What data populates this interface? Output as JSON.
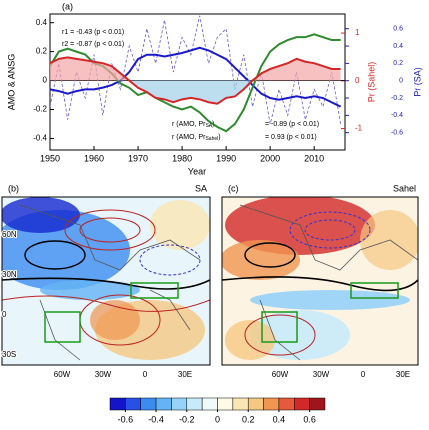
{
  "chart_data": [
    {
      "type": "line",
      "panel": "(a)",
      "xlabel": "Year",
      "ylabel": "AMO & ANSG",
      "y2label": "Pr (Sahel)",
      "y3label": "Pr (SA)",
      "annotations": [
        "r1 = -0.43 (p < 0.01)",
        "r2 = -0.87 (p < 0.01)"
      ],
      "corr_labels": [
        {
          "text": "r (AMO, Pr",
          "sub": "SA",
          "tail": ")",
          "stat": "= -0.89 (p < 0.01)"
        },
        {
          "text": "r (AMO, Pr",
          "sub": "Sahel",
          "tail": ")",
          "stat": "= 0.93 (p < 0.01)"
        }
      ],
      "x": [
        1950,
        1952,
        1954,
        1956,
        1958,
        1960,
        1962,
        1964,
        1966,
        1968,
        1970,
        1972,
        1974,
        1976,
        1978,
        1980,
        1982,
        1984,
        1986,
        1988,
        1990,
        1992,
        1994,
        1996,
        1998,
        2000,
        2002,
        2004,
        2006,
        2008,
        2010,
        2012,
        2014,
        2016
      ],
      "xlim": [
        1950,
        2017
      ],
      "xticks": [
        1950,
        1960,
        1970,
        1980,
        1990,
        2000,
        2010
      ],
      "ylim": [
        -0.48,
        0.46
      ],
      "yticks": [
        -0.4,
        -0.2,
        0,
        0.2,
        0.4
      ],
      "y2lim": [
        -1.45,
        1.4
      ],
      "y2ticks": [
        -1,
        0,
        1
      ],
      "y2color": "#d62728",
      "y3lim": [
        -0.8,
        0.77
      ],
      "y3ticks": [
        -0.6,
        -0.4,
        -0.2,
        0,
        0.2,
        0.4,
        0.6
      ],
      "y3color": "#1f1fb4",
      "series": [
        {
          "color": "#6a5acd",
          "axis": "y3",
          "style": "dashed",
          "values": [
            -0.3,
            0.2,
            -0.45,
            0.1,
            -0.2,
            0.3,
            -0.4,
            0.2,
            -0.1,
            0.4,
            0.1,
            0.6,
            0.2,
            0.7,
            0.1,
            0.5,
            0.3,
            0.75,
            0.2,
            0.5,
            0.6,
            -0.1,
            0.3,
            -0.3,
            0.1,
            -0.5,
            -0.1,
            -0.4,
            0.1,
            -0.45,
            -0.1,
            -0.3,
            0.1,
            -0.5
          ]
        },
        {
          "color": "#1a1acc",
          "axis": "y3",
          "style": "solid",
          "values": [
            -0.1,
            -0.12,
            -0.15,
            -0.12,
            -0.1,
            -0.1,
            -0.08,
            -0.05,
            0.0,
            0.1,
            0.25,
            0.3,
            0.3,
            0.28,
            0.3,
            0.32,
            0.35,
            0.38,
            0.35,
            0.3,
            0.25,
            0.15,
            0.05,
            -0.05,
            -0.15,
            -0.2,
            -0.22,
            -0.2,
            -0.18,
            -0.2,
            -0.18,
            -0.2,
            -0.25,
            -0.3
          ]
        },
        {
          "color": "#2e8b2e",
          "axis": "y",
          "style": "solid",
          "values": [
            0.1,
            0.2,
            0.22,
            0.2,
            0.18,
            0.12,
            0.1,
            0.05,
            -0.02,
            -0.05,
            -0.1,
            -0.08,
            -0.12,
            -0.15,
            -0.18,
            -0.2,
            -0.18,
            -0.22,
            -0.28,
            -0.32,
            -0.35,
            -0.3,
            -0.2,
            -0.05,
            0.1,
            0.2,
            0.25,
            0.28,
            0.3,
            0.3,
            0.32,
            0.3,
            0.28,
            0.28
          ]
        },
        {
          "color": "#d62728",
          "axis": "y",
          "style": "solid",
          "fill": true,
          "values": [
            0.12,
            0.15,
            0.16,
            0.15,
            0.14,
            0.13,
            0.12,
            0.1,
            0.05,
            0.0,
            -0.05,
            -0.08,
            -0.12,
            -0.13,
            -0.15,
            -0.13,
            -0.12,
            -0.13,
            -0.15,
            -0.16,
            -0.12,
            -0.11,
            -0.06,
            0.0,
            0.05,
            0.08,
            0.1,
            0.12,
            0.15,
            0.13,
            0.12,
            0.1,
            0.08,
            0.08
          ]
        }
      ]
    },
    {
      "type": "colorbar",
      "xlim": [
        -0.7,
        0.7
      ],
      "xticks": [
        -0.6,
        -0.4,
        -0.2,
        0,
        0.2,
        0.4,
        0.6
      ],
      "colors": [
        "#1414c8",
        "#2850e6",
        "#3c8cf0",
        "#64b4f5",
        "#96d2fa",
        "#c8ebfa",
        "#f0fafa",
        "#fffae6",
        "#fae6b4",
        "#f5c882",
        "#f09650",
        "#e65a3c",
        "#d22828",
        "#a0141e"
      ]
    }
  ],
  "maps": [
    {
      "label": "(b)",
      "title": "SA",
      "lat_labels": [
        "60N",
        "30N",
        "0",
        "30S"
      ],
      "lon_labels": [
        "60W",
        "30W",
        "0",
        "30E"
      ]
    },
    {
      "label": "(c)",
      "title": "Sahel",
      "lon_labels": [
        "60W",
        "30W",
        "0",
        "30E"
      ]
    }
  ]
}
